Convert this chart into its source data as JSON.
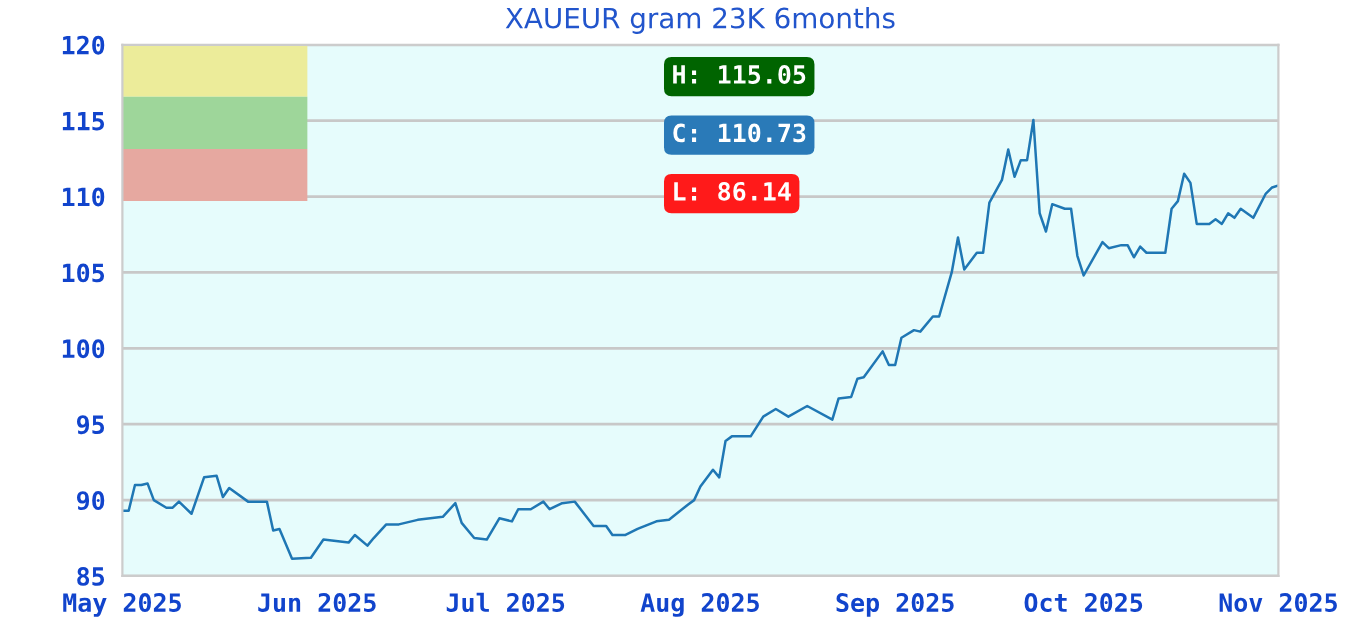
{
  "chart_data": {
    "type": "line",
    "title": "XAUEUR gram 23K 6months",
    "x": [
      "2025-05-01",
      "2025-05-02",
      "2025-05-03",
      "2025-05-04",
      "2025-05-05",
      "2025-05-06",
      "2025-05-08",
      "2025-05-09",
      "2025-05-10",
      "2025-05-12",
      "2025-05-14",
      "2025-05-16",
      "2025-05-17",
      "2025-05-18",
      "2025-05-21",
      "2025-05-24",
      "2025-05-25",
      "2025-05-26",
      "2025-05-28",
      "2025-05-31",
      "2025-06-02",
      "2025-06-06",
      "2025-06-07",
      "2025-06-09",
      "2025-06-10",
      "2025-06-12",
      "2025-06-14",
      "2025-06-17",
      "2025-06-21",
      "2025-06-23",
      "2025-06-24",
      "2025-06-26",
      "2025-06-28",
      "2025-06-30",
      "2025-07-02",
      "2025-07-03",
      "2025-07-05",
      "2025-07-07",
      "2025-07-08",
      "2025-07-10",
      "2025-07-12",
      "2025-07-15",
      "2025-07-17",
      "2025-07-18",
      "2025-07-20",
      "2025-07-22",
      "2025-07-25",
      "2025-07-27",
      "2025-07-30",
      "2025-07-31",
      "2025-08-01",
      "2025-08-03",
      "2025-08-04",
      "2025-08-05",
      "2025-08-06",
      "2025-08-09",
      "2025-08-11",
      "2025-08-13",
      "2025-08-15",
      "2025-08-18",
      "2025-08-22",
      "2025-08-23",
      "2025-08-25",
      "2025-08-26",
      "2025-08-27",
      "2025-08-30",
      "2025-08-31",
      "2025-09-01",
      "2025-09-02",
      "2025-09-04",
      "2025-09-05",
      "2025-09-07",
      "2025-09-08",
      "2025-09-10",
      "2025-09-11",
      "2025-09-12",
      "2025-09-14",
      "2025-09-15",
      "2025-09-16",
      "2025-09-18",
      "2025-09-19",
      "2025-09-20",
      "2025-09-21",
      "2025-09-22",
      "2025-09-23",
      "2025-09-24",
      "2025-09-25",
      "2025-09-26",
      "2025-09-28",
      "2025-09-29",
      "2025-09-30",
      "2025-10-01",
      "2025-10-04",
      "2025-10-05",
      "2025-10-07",
      "2025-10-08",
      "2025-10-09",
      "2025-10-10",
      "2025-10-11",
      "2025-10-14",
      "2025-10-15",
      "2025-10-16",
      "2025-10-17",
      "2025-10-18",
      "2025-10-19",
      "2025-10-21",
      "2025-10-22",
      "2025-10-23",
      "2025-10-24",
      "2025-10-25",
      "2025-10-26",
      "2025-10-28",
      "2025-10-30",
      "2025-10-31",
      "2025-11-01"
    ],
    "series": [
      {
        "color": "#1f77b4",
        "values": [
          89.3,
          89.3,
          91.0,
          91.0,
          91.1,
          90.0,
          89.5,
          89.5,
          89.9,
          89.1,
          91.5,
          91.6,
          90.2,
          90.8,
          89.9,
          89.9,
          88.0,
          88.1,
          86.14,
          86.2,
          87.4,
          87.2,
          87.7,
          87.0,
          87.5,
          88.4,
          88.4,
          88.7,
          88.9,
          89.8,
          88.5,
          87.5,
          87.4,
          88.8,
          88.6,
          89.4,
          89.4,
          89.9,
          89.4,
          89.8,
          89.9,
          88.3,
          88.3,
          87.7,
          87.7,
          88.1,
          88.6,
          88.7,
          89.7,
          90.0,
          90.9,
          92.0,
          91.5,
          93.9,
          94.2,
          94.2,
          95.5,
          96.0,
          95.5,
          96.2,
          95.3,
          96.7,
          96.8,
          98.0,
          98.1,
          99.8,
          98.9,
          98.9,
          100.7,
          101.2,
          101.1,
          102.1,
          102.1,
          105.0,
          107.3,
          105.2,
          106.3,
          106.3,
          109.6,
          111.1,
          113.1,
          111.3,
          112.4,
          112.4,
          115.05,
          108.9,
          107.7,
          109.5,
          109.2,
          109.2,
          106.1,
          104.8,
          107.0,
          106.6,
          106.8,
          106.8,
          106.0,
          106.7,
          106.3,
          106.3,
          109.2,
          109.7,
          111.5,
          110.9,
          108.2,
          108.2,
          108.5,
          108.2,
          108.9,
          108.6,
          109.2,
          108.6,
          110.2,
          110.6,
          110.73
        ]
      }
    ],
    "xlim": [
      "2025-05-01",
      "2025-11-01"
    ],
    "xticks": [
      {
        "value": "2025-05-01",
        "label": "May 2025"
      },
      {
        "value": "2025-06-01",
        "label": "Jun 2025"
      },
      {
        "value": "2025-07-01",
        "label": "Jul 2025"
      },
      {
        "value": "2025-08-01",
        "label": "Aug 2025"
      },
      {
        "value": "2025-09-01",
        "label": "Sep 2025"
      },
      {
        "value": "2025-10-01",
        "label": "Oct 2025"
      },
      {
        "value": "2025-11-01",
        "label": "Nov 2025"
      }
    ],
    "ylim": [
      85,
      120
    ],
    "yticks": [
      85,
      90,
      95,
      100,
      105,
      110,
      115,
      120
    ],
    "grid": "y",
    "legend": false,
    "marker": "none",
    "line_style": "solid",
    "annotations": [
      "H: 115.05",
      "C: 110.73",
      "L: 86.14"
    ]
  }
}
